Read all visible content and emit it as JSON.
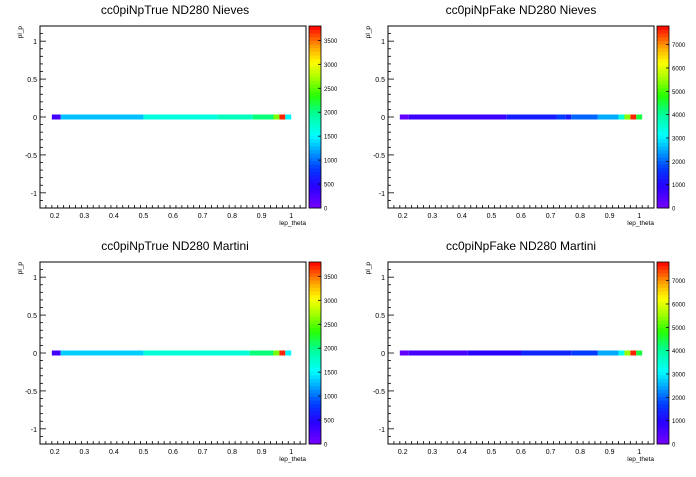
{
  "chart_data": [
    {
      "type": "heatmap",
      "title": "cc0piNpTrue ND280 Nieves",
      "xlabel": "lep_theta",
      "ylabel": "pl_p",
      "xlim": [
        0.15,
        1.05
      ],
      "ylim": [
        -1.2,
        1.2
      ],
      "x_ticks": [
        "0.2",
        "0.3",
        "0.4",
        "0.5",
        "0.6",
        "0.7",
        "0.8",
        "0.9",
        "1"
      ],
      "y_ticks": [
        "-1",
        "-0.5",
        "0",
        "0.5",
        "1"
      ],
      "z_range": [
        0,
        3800
      ],
      "z_ticks": [
        "0",
        "500",
        "1000",
        "1500",
        "2000",
        "2500",
        "3000",
        "3500"
      ],
      "cells_y": 0.0,
      "cells": [
        {
          "x0": 0.19,
          "x1": 0.22,
          "z": 300
        },
        {
          "x0": 0.22,
          "x1": 0.5,
          "z": 1300
        },
        {
          "x0": 0.5,
          "x1": 0.75,
          "z": 1650
        },
        {
          "x0": 0.75,
          "x1": 0.87,
          "z": 1800
        },
        {
          "x0": 0.87,
          "x1": 0.94,
          "z": 2050
        },
        {
          "x0": 0.94,
          "x1": 0.96,
          "z": 2600
        },
        {
          "x0": 0.96,
          "x1": 0.98,
          "z": 3700
        },
        {
          "x0": 0.98,
          "x1": 1.0,
          "z": 1500
        }
      ]
    },
    {
      "type": "heatmap",
      "title": "cc0piNpFake ND280 Nieves",
      "xlabel": "lep_theta",
      "ylabel": "pl_p",
      "xlim": [
        0.15,
        1.05
      ],
      "ylim": [
        -1.2,
        1.2
      ],
      "x_ticks": [
        "0.2",
        "0.3",
        "0.4",
        "0.5",
        "0.6",
        "0.7",
        "0.8",
        "0.9",
        "1"
      ],
      "y_ticks": [
        "-1",
        "-0.5",
        "0",
        "0.5",
        "1"
      ],
      "z_range": [
        0,
        7800
      ],
      "z_ticks": [
        "0",
        "1000",
        "2000",
        "3000",
        "4000",
        "5000",
        "6000",
        "7000"
      ],
      "cells_y": 0.0,
      "cells": [
        {
          "x0": 0.19,
          "x1": 0.22,
          "z": 250
        },
        {
          "x0": 0.22,
          "x1": 0.55,
          "z": 700
        },
        {
          "x0": 0.55,
          "x1": 0.72,
          "z": 1300
        },
        {
          "x0": 0.72,
          "x1": 0.75,
          "z": 1700
        },
        {
          "x0": 0.75,
          "x1": 0.77,
          "z": 1300
        },
        {
          "x0": 0.77,
          "x1": 0.86,
          "z": 2000
        },
        {
          "x0": 0.86,
          "x1": 0.93,
          "z": 2500
        },
        {
          "x0": 0.93,
          "x1": 0.95,
          "z": 3500
        },
        {
          "x0": 0.95,
          "x1": 0.97,
          "z": 5400
        },
        {
          "x0": 0.97,
          "x1": 0.99,
          "z": 7600
        },
        {
          "x0": 0.99,
          "x1": 1.01,
          "z": 4500
        }
      ]
    },
    {
      "type": "heatmap",
      "title": "cc0piNpTrue ND280 Martini",
      "xlabel": "lep_theta",
      "ylabel": "pl_p",
      "xlim": [
        0.15,
        1.05
      ],
      "ylim": [
        -1.2,
        1.2
      ],
      "x_ticks": [
        "0.2",
        "0.3",
        "0.4",
        "0.5",
        "0.6",
        "0.7",
        "0.8",
        "0.9",
        "1"
      ],
      "y_ticks": [
        "-1",
        "-0.5",
        "0",
        "0.5",
        "1"
      ],
      "z_range": [
        0,
        3800
      ],
      "z_ticks": [
        "0",
        "500",
        "1000",
        "1500",
        "2000",
        "2500",
        "3000",
        "3500"
      ],
      "cells_y": 0.0,
      "cells": [
        {
          "x0": 0.19,
          "x1": 0.22,
          "z": 300
        },
        {
          "x0": 0.22,
          "x1": 0.5,
          "z": 1350
        },
        {
          "x0": 0.5,
          "x1": 0.86,
          "z": 1700
        },
        {
          "x0": 0.86,
          "x1": 0.94,
          "z": 2050
        },
        {
          "x0": 0.94,
          "x1": 0.96,
          "z": 2600
        },
        {
          "x0": 0.96,
          "x1": 0.98,
          "z": 3700
        },
        {
          "x0": 0.98,
          "x1": 1.0,
          "z": 1500
        }
      ]
    },
    {
      "type": "heatmap",
      "title": "cc0piNpFake ND280 Martini",
      "xlabel": "lep_theta",
      "ylabel": "pl_p",
      "xlim": [
        0.15,
        1.05
      ],
      "ylim": [
        -1.2,
        1.2
      ],
      "x_ticks": [
        "0.2",
        "0.3",
        "0.4",
        "0.5",
        "0.6",
        "0.7",
        "0.8",
        "0.9",
        "1"
      ],
      "y_ticks": [
        "-1",
        "-0.5",
        "0",
        "0.5",
        "1"
      ],
      "z_range": [
        0,
        7800
      ],
      "z_ticks": [
        "0",
        "1000",
        "2000",
        "3000",
        "4000",
        "5000",
        "6000",
        "7000"
      ],
      "cells_y": 0.0,
      "cells": [
        {
          "x0": 0.19,
          "x1": 0.22,
          "z": 250
        },
        {
          "x0": 0.22,
          "x1": 0.42,
          "z": 600
        },
        {
          "x0": 0.42,
          "x1": 0.6,
          "z": 900
        },
        {
          "x0": 0.6,
          "x1": 0.77,
          "z": 1400
        },
        {
          "x0": 0.77,
          "x1": 0.86,
          "z": 1700
        },
        {
          "x0": 0.86,
          "x1": 0.93,
          "z": 2500
        },
        {
          "x0": 0.93,
          "x1": 0.95,
          "z": 3300
        },
        {
          "x0": 0.95,
          "x1": 0.97,
          "z": 5500
        },
        {
          "x0": 0.97,
          "x1": 0.99,
          "z": 7600
        },
        {
          "x0": 0.99,
          "x1": 1.01,
          "z": 4500
        }
      ]
    }
  ]
}
